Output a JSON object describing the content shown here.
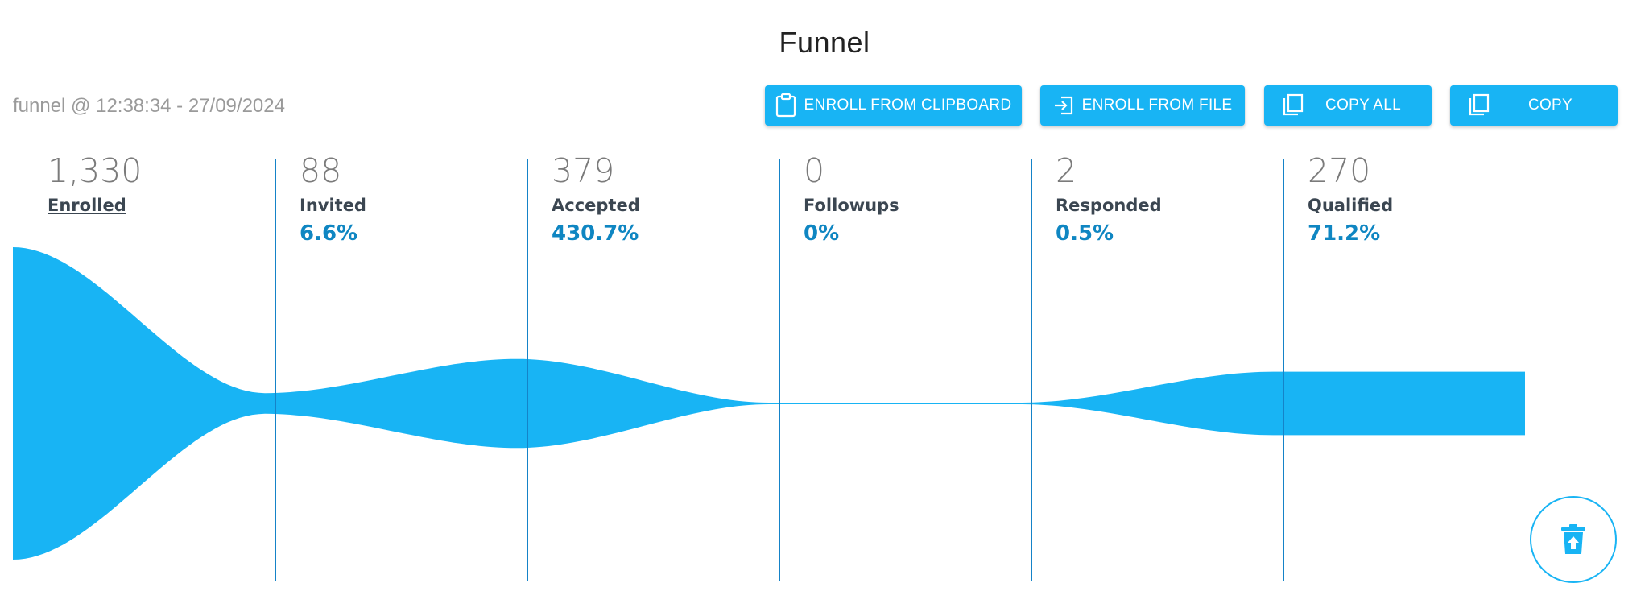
{
  "page": {
    "title": "Funnel",
    "subtitle": "funnel @ 12:38:34 - 27/09/2024"
  },
  "toolbar": {
    "enroll_clipboard_label": "ENROLL FROM CLIPBOARD",
    "enroll_file_label": "ENROLL FROM FILE",
    "copy_all_label": "COPY ALL",
    "copy_label": "COPY"
  },
  "icons": {
    "clipboard": "clipboard-icon",
    "file_enter": "login-icon",
    "copy": "content-copy-icon",
    "delete": "delete-restore-icon"
  },
  "colors": {
    "accent": "#18b4f4",
    "divider": "#1583c8",
    "percent": "#0f86c2"
  },
  "chart_data": {
    "type": "funnel",
    "stages": [
      {
        "label": "Enrolled",
        "count": 1330,
        "count_text": "1,330",
        "percent_text": ""
      },
      {
        "label": "Invited",
        "count": 88,
        "count_text": "88",
        "percent_text": "6.6%"
      },
      {
        "label": "Accepted",
        "count": 379,
        "count_text": "379",
        "percent_text": "430.7%"
      },
      {
        "label": "Followups",
        "count": 0,
        "count_text": "0",
        "percent_text": "0%"
      },
      {
        "label": "Responded",
        "count": 2,
        "count_text": "2",
        "percent_text": "0.5%"
      },
      {
        "label": "Qualified",
        "count": 270,
        "count_text": "270",
        "percent_text": "71.2%"
      }
    ]
  }
}
